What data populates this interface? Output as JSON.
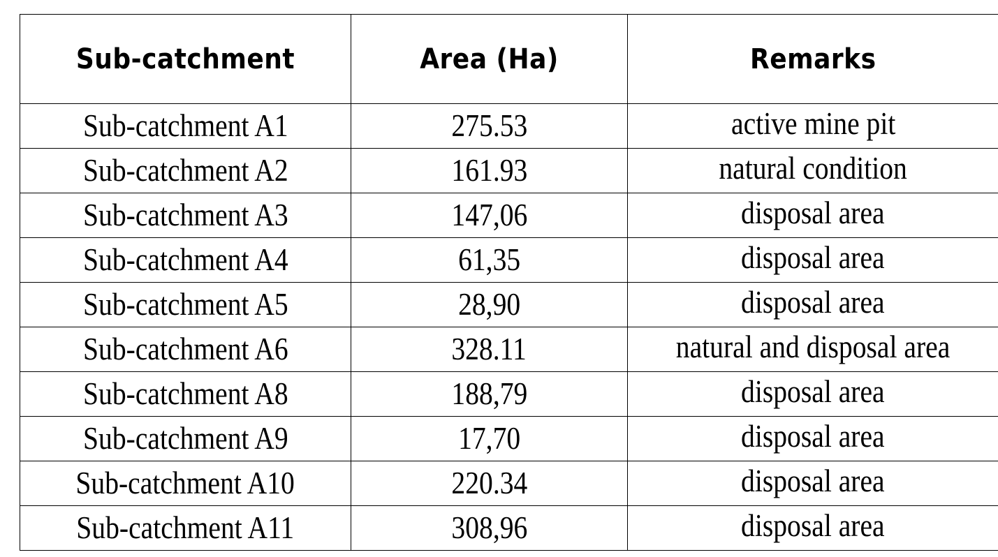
{
  "table": {
    "headers": [
      "Sub-catchment",
      "Area (Ha)",
      "Remarks"
    ],
    "rows": [
      {
        "name": "Sub-catchment A1",
        "area": "275.53",
        "remarks": "active mine pit"
      },
      {
        "name": "Sub-catchment A2",
        "area": "161.93",
        "remarks": "natural condition"
      },
      {
        "name": "Sub-catchment A3",
        "area": "147,06",
        "remarks": "disposal area"
      },
      {
        "name": "Sub-catchment A4",
        "area": "61,35",
        "remarks": "disposal area"
      },
      {
        "name": "Sub-catchment A5",
        "area": "28,90",
        "remarks": "disposal area"
      },
      {
        "name": "Sub-catchment A6",
        "area": "328.11",
        "remarks": "natural and disposal area"
      },
      {
        "name": "Sub-catchment A8",
        "area": "188,79",
        "remarks": "disposal area"
      },
      {
        "name": "Sub-catchment A9",
        "area": "17,70",
        "remarks": "disposal area"
      },
      {
        "name": "Sub-catchment A10",
        "area": "220.34",
        "remarks": "disposal area"
      },
      {
        "name": "Sub-catchment A11",
        "area": "308,96",
        "remarks": "disposal area"
      }
    ]
  }
}
